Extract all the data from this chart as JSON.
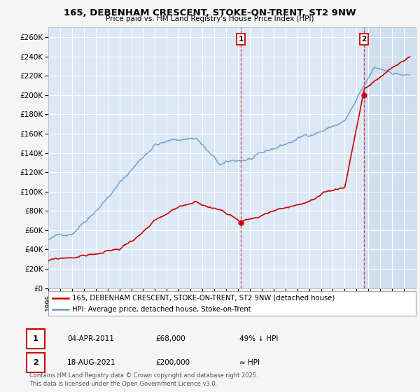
{
  "title": "165, DEBENHAM CRESCENT, STOKE-ON-TRENT, ST2 9NW",
  "subtitle": "Price paid vs. HM Land Registry's House Price Index (HPI)",
  "ylim": [
    0,
    270000
  ],
  "yticks": [
    0,
    20000,
    40000,
    60000,
    80000,
    100000,
    120000,
    140000,
    160000,
    180000,
    200000,
    220000,
    240000,
    260000
  ],
  "ytick_labels": [
    "£0",
    "£20K",
    "£40K",
    "£60K",
    "£80K",
    "£100K",
    "£120K",
    "£140K",
    "£160K",
    "£180K",
    "£200K",
    "£220K",
    "£240K",
    "£260K"
  ],
  "fig_bg_color": "#f5f5f5",
  "plot_bg_color": "#dce8f5",
  "grid_color": "#ffffff",
  "red_line_color": "#cc0000",
  "blue_line_color": "#6699cc",
  "shade_color": "#dce8f5",
  "marker1_x": 2011.25,
  "marker1_y": 68000,
  "marker2_x": 2021.62,
  "marker2_y": 200000,
  "legend_red": "165, DEBENHAM CRESCENT, STOKE-ON-TRENT, ST2 9NW (detached house)",
  "legend_blue": "HPI: Average price, detached house, Stoke-on-Trent",
  "annotation1_date": "04-APR-2011",
  "annotation1_price": "£68,000",
  "annotation1_hpi": "49% ↓ HPI",
  "annotation2_date": "18-AUG-2021",
  "annotation2_price": "£200,000",
  "annotation2_hpi": "≈ HPI",
  "footer": "Contains HM Land Registry data © Crown copyright and database right 2025.\nThis data is licensed under the Open Government Licence v3.0.",
  "xmin": 1995,
  "xmax": 2026
}
